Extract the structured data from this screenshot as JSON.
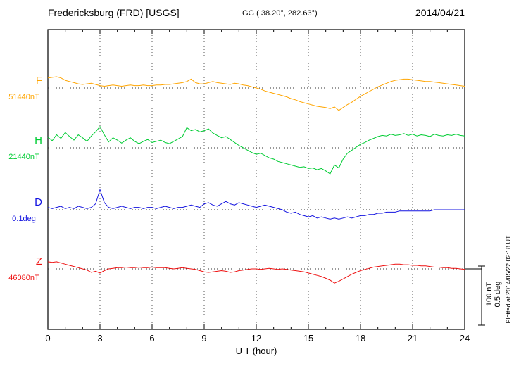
{
  "header": {
    "station": "Fredericksburg (FRD)  [USGS]",
    "coords": "GG ( 38.20°, 282.63°)",
    "date": "2014/04/21"
  },
  "axis": {
    "x_label": "U T (hour)",
    "x_ticks": [
      "0",
      "3",
      "6",
      "9",
      "12",
      "15",
      "18",
      "21",
      "24"
    ],
    "x_min": 0,
    "x_max": 24
  },
  "scale_bar": {
    "nt_label": "100 nT",
    "deg_label": "0.5 deg"
  },
  "footer_note": "Plotted at 2014/05/22 02:18 UT",
  "chart_data": {
    "type": "line",
    "title": "Fredericksburg (FRD) magnetogram 2014/04/21",
    "xlabel": "U T (hour)",
    "x_range": [
      0,
      24
    ],
    "x_tick_step": 3,
    "grid": "dotted vertical every 3 h, dotted baseline per channel",
    "legend_position": "left of each trace",
    "scale_reference": {
      "nT_per_division": 100,
      "deg_per_division": 0.5
    },
    "values_are_offsets_from_baseline": true,
    "series": [
      {
        "name": "F",
        "unit": "nT",
        "baseline": 51440,
        "baseline_label": "51440nT",
        "color": "#FFA500",
        "offsets": [
          17,
          18,
          19,
          17,
          13,
          11,
          9,
          7,
          6,
          7,
          8,
          6,
          4,
          3,
          4,
          5,
          4,
          3,
          4,
          5,
          4,
          4,
          5,
          4,
          4,
          5,
          5,
          6,
          6,
          7,
          8,
          9,
          11,
          15,
          9,
          7,
          7,
          9,
          11,
          9,
          8,
          7,
          6,
          8,
          7,
          5,
          4,
          2,
          0,
          -2,
          -5,
          -7,
          -9,
          -11,
          -13,
          -15,
          -18,
          -20,
          -23,
          -25,
          -27,
          -29,
          -31,
          -32,
          -33,
          -35,
          -32,
          -38,
          -33,
          -28,
          -24,
          -19,
          -14,
          -10,
          -6,
          -2,
          2,
          5,
          8,
          11,
          13,
          14,
          15,
          15,
          14,
          13,
          12,
          11,
          11,
          10,
          9,
          8,
          7,
          6,
          5,
          4,
          3
        ]
      },
      {
        "name": "H",
        "unit": "nT",
        "baseline": 21440,
        "baseline_label": "21440nT",
        "color": "#00CC33",
        "offsets": [
          18,
          12,
          22,
          16,
          26,
          19,
          13,
          22,
          17,
          11,
          20,
          27,
          36,
          22,
          10,
          17,
          13,
          8,
          13,
          17,
          11,
          7,
          11,
          14,
          9,
          11,
          13,
          9,
          7,
          11,
          15,
          19,
          34,
          29,
          31,
          27,
          29,
          32,
          25,
          21,
          17,
          19,
          14,
          9,
          4,
          0,
          -4,
          -8,
          -11,
          -9,
          -13,
          -17,
          -19,
          -23,
          -25,
          -27,
          -29,
          -31,
          -33,
          -32,
          -35,
          -34,
          -37,
          -35,
          -39,
          -44,
          -29,
          -34,
          -19,
          -9,
          -4,
          1,
          6,
          9,
          13,
          16,
          19,
          21,
          20,
          23,
          21,
          22,
          24,
          21,
          23,
          20,
          22,
          21,
          19,
          23,
          21,
          20,
          22,
          21,
          23,
          21,
          20
        ]
      },
      {
        "name": "D",
        "unit": "deg",
        "baseline": 0.1,
        "baseline_label": "0.1deg",
        "color": "#1414E0",
        "offsets": [
          0.02,
          0.01,
          0.02,
          0.03,
          0.01,
          0.02,
          0.01,
          0.03,
          0.02,
          0.01,
          0.02,
          0.05,
          0.17,
          0.06,
          0.02,
          0.01,
          0.02,
          0.03,
          0.02,
          0.01,
          0.02,
          0.02,
          0.01,
          0.02,
          0.02,
          0.01,
          0.02,
          0.03,
          0.02,
          0.01,
          0.02,
          0.02,
          0.03,
          0.04,
          0.03,
          0.02,
          0.05,
          0.06,
          0.04,
          0.03,
          0.05,
          0.07,
          0.05,
          0.04,
          0.06,
          0.05,
          0.04,
          0.03,
          0.02,
          0.03,
          0.04,
          0.03,
          0.02,
          0.01,
          0.0,
          -0.02,
          -0.03,
          -0.02,
          -0.04,
          -0.05,
          -0.06,
          -0.05,
          -0.07,
          -0.06,
          -0.07,
          -0.08,
          -0.07,
          -0.08,
          -0.07,
          -0.06,
          -0.07,
          -0.06,
          -0.05,
          -0.05,
          -0.04,
          -0.04,
          -0.03,
          -0.03,
          -0.02,
          -0.02,
          -0.02,
          -0.01,
          -0.01,
          -0.01,
          -0.01,
          -0.01,
          -0.01,
          -0.01,
          -0.01,
          0.0,
          0.0,
          0.0,
          0.0,
          0.0,
          0.0,
          0.0,
          0.0
        ]
      },
      {
        "name": "Z",
        "unit": "nT",
        "baseline": 46080,
        "baseline_label": "46080nT",
        "color": "#EE1111",
        "offsets": [
          12,
          11,
          12,
          10,
          8,
          6,
          4,
          2,
          0,
          -2,
          -6,
          -4,
          -7,
          -3,
          0,
          1,
          2,
          2,
          3,
          2,
          2,
          3,
          2,
          2,
          3,
          2,
          2,
          2,
          1,
          0,
          1,
          2,
          1,
          0,
          -1,
          -3,
          -5,
          -6,
          -5,
          -4,
          -3,
          -4,
          -6,
          -5,
          -3,
          -2,
          -1,
          0,
          0,
          -1,
          0,
          1,
          0,
          -1,
          0,
          -1,
          -2,
          -3,
          -4,
          -5,
          -7,
          -9,
          -11,
          -13,
          -16,
          -19,
          -24,
          -21,
          -17,
          -13,
          -9,
          -6,
          -3,
          -1,
          1,
          3,
          4,
          5,
          6,
          7,
          8,
          8,
          7,
          7,
          6,
          6,
          5,
          5,
          4,
          3,
          3,
          2,
          2,
          1,
          1,
          0,
          -1
        ]
      }
    ]
  }
}
